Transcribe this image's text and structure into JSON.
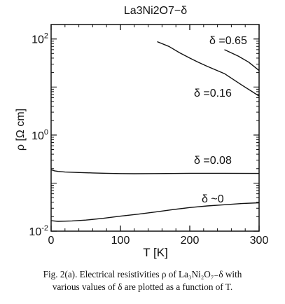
{
  "chart_data": {
    "type": "line",
    "title": "La3Ni2O7−δ",
    "xlabel": "T [K]",
    "ylabel": "ρ [Ω cm]",
    "xlim": [
      0,
      300
    ],
    "ylim": [
      0.01,
      200
    ],
    "yscale": "log",
    "grid": false,
    "x_ticks": [
      0,
      100,
      200,
      300
    ],
    "x_tick_labels": [
      "0",
      "100",
      "200",
      "300"
    ],
    "y_ticks": [
      0.01,
      1,
      100
    ],
    "y_tick_labels": [
      "10",
      "10",
      "10"
    ],
    "y_tick_exponents": [
      "-2",
      "0",
      "2"
    ],
    "series": [
      {
        "name": "δ =0.65",
        "x": [
          250,
          270,
          285,
          300
        ],
        "y": [
          60,
          44,
          33,
          22
        ]
      },
      {
        "name": "δ =0.16",
        "x": [
          153,
          170,
          185,
          200,
          212,
          225,
          250,
          275,
          300
        ],
        "y": [
          88,
          70,
          52,
          40,
          33,
          27,
          19,
          11,
          6.5
        ]
      },
      {
        "name": "δ =0.08",
        "x": [
          0,
          5,
          10,
          20,
          40,
          60,
          80,
          100,
          120,
          150,
          200,
          250,
          300
        ],
        "y": [
          0.19,
          0.18,
          0.175,
          0.17,
          0.166,
          0.163,
          0.16,
          0.158,
          0.157,
          0.158,
          0.16,
          0.16,
          0.159
        ]
      },
      {
        "name": "δ ~0",
        "x": [
          0,
          10,
          30,
          50,
          75,
          100,
          125,
          150,
          175,
          200,
          225,
          250,
          275,
          300
        ],
        "y": [
          0.0165,
          0.016,
          0.0163,
          0.017,
          0.0185,
          0.0205,
          0.0225,
          0.025,
          0.028,
          0.031,
          0.0335,
          0.0355,
          0.0375,
          0.039
        ]
      }
    ],
    "annotations": [
      "δ =0.65",
      "δ =0.16",
      "δ =0.08",
      "δ ~0"
    ]
  },
  "caption": {
    "line1": "Fig. 2(a).   Electrical resistivities ρ of La₃Ni₂O₇₋δ with",
    "line2": "various values of δ are plotted as a function of T."
  }
}
